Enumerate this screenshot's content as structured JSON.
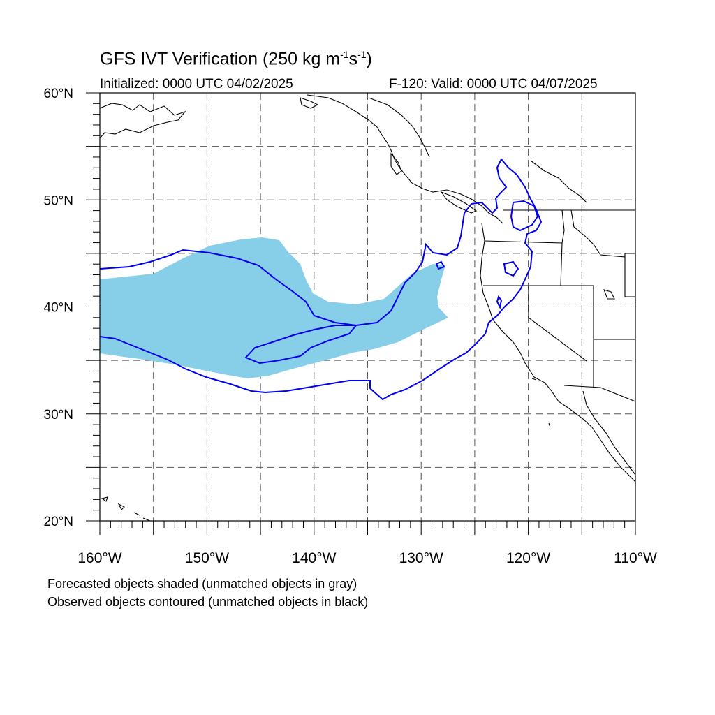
{
  "title": {
    "main": "GFS IVT Verification (250 kg m",
    "sup1": "-1",
    "mid": "s",
    "sup2": "-1",
    "end": ")"
  },
  "initialized": "Initialized: 0000 UTC 04/02/2025",
  "valid": "F-120: Valid: 0000 UTC 04/07/2025",
  "map": {
    "lon_range": [
      -160,
      -110
    ],
    "lat_range": [
      20,
      60
    ],
    "lat_ticks": [
      {
        "value": 60,
        "label": "60°N"
      },
      {
        "value": 50,
        "label": "50°N"
      },
      {
        "value": 40,
        "label": "40°N"
      },
      {
        "value": 30,
        "label": "30°N"
      },
      {
        "value": 20,
        "label": "20°N"
      }
    ],
    "lon_ticks": [
      {
        "value": -160,
        "label": "160°W"
      },
      {
        "value": -150,
        "label": "150°W"
      },
      {
        "value": -140,
        "label": "140°W"
      },
      {
        "value": -130,
        "label": "130°W"
      },
      {
        "value": -120,
        "label": "120°W"
      },
      {
        "value": -110,
        "label": "110°W"
      }
    ],
    "grid_spacing_deg": 5,
    "colors": {
      "forecast_fill": "#87CEE8",
      "observed_contour": "#0000EE",
      "coastline": "#000000",
      "grid": "#555555"
    }
  },
  "legend": {
    "forecast": "Forecasted objects shaded (unmatched objects in gray)",
    "observed": "Observed objects contoured (unmatched objects in black)"
  }
}
